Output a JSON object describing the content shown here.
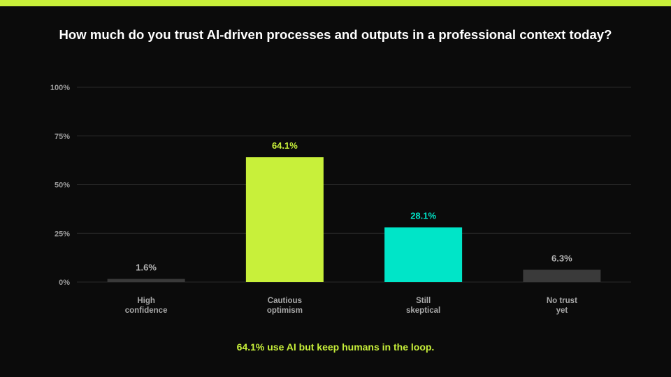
{
  "title": "How much do you trust AI-driven processes and outputs in a professional context today?",
  "footnote": "64.1% use AI but keep humans in the loop.",
  "colors": {
    "background": "#0b0b0b",
    "accent": "#c8f03a",
    "teal": "#00e5c8",
    "muted_bar": "#3a3a3a",
    "grid": "#2a2a2a",
    "tick_label": "#9a9a9a",
    "category_label": "#a8a8a8",
    "value_label_muted": "#b5b5b5"
  },
  "chart_data": {
    "type": "bar",
    "categories": [
      [
        "High",
        "confidence"
      ],
      [
        "Cautious",
        "optimism"
      ],
      [
        "Still",
        "skeptical"
      ],
      [
        "No trust",
        "yet"
      ]
    ],
    "values": [
      1.6,
      64.1,
      28.1,
      6.3
    ],
    "value_labels": [
      "1.6%",
      "64.1%",
      "28.1%",
      "6.3%"
    ],
    "bar_colors": [
      "#3a3a3a",
      "#c8f03a",
      "#00e5c8",
      "#3a3a3a"
    ],
    "label_colors": [
      "#b5b5b5",
      "#c8f03a",
      "#00e5c8",
      "#b5b5b5"
    ],
    "y_ticks": [
      0,
      25,
      50,
      75,
      100
    ],
    "y_tick_labels": [
      "0%",
      "25%",
      "50%",
      "75%",
      "100%"
    ],
    "ylim": [
      0,
      100
    ],
    "grid": true,
    "legend": "none"
  }
}
